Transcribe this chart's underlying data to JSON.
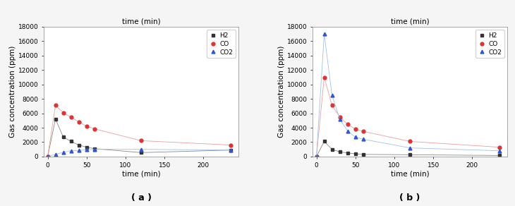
{
  "panel_a": {
    "title": "time (min)",
    "xlabel": "time (min)",
    "ylabel": "Gas concentration (ppm)",
    "label": "( a )",
    "ylim": [
      0,
      18000
    ],
    "xlim": [
      -5,
      245
    ],
    "xticks": [
      0,
      50,
      100,
      150,
      200
    ],
    "yticks": [
      0,
      2000,
      4000,
      6000,
      8000,
      10000,
      12000,
      14000,
      16000,
      18000
    ],
    "H2": {
      "x": [
        0,
        10,
        20,
        30,
        40,
        50,
        60,
        120,
        235
      ],
      "y": [
        0,
        5200,
        2700,
        2100,
        1600,
        1300,
        1100,
        550,
        900
      ],
      "color": "#888888",
      "marker": "s",
      "markercolor": "#333333",
      "label": "H2"
    },
    "CO": {
      "x": [
        0,
        10,
        20,
        30,
        40,
        50,
        60,
        120,
        235
      ],
      "y": [
        0,
        7100,
        6100,
        5450,
        4800,
        4200,
        3850,
        2200,
        1600
      ],
      "color": "#e8a0a0",
      "marker": "o",
      "markercolor": "#dd3333",
      "label": "CO"
    },
    "CO2": {
      "x": [
        0,
        10,
        20,
        30,
        40,
        50,
        60,
        120,
        235
      ],
      "y": [
        0,
        300,
        600,
        800,
        850,
        950,
        1000,
        1000,
        900
      ],
      "color": "#a0c0e8",
      "marker": "^",
      "markercolor": "#3355cc",
      "label": "CO2"
    }
  },
  "panel_b": {
    "title": "time (min)",
    "xlabel": "time (min)",
    "ylabel": "Gas concentration (ppm)",
    "label": "( b )",
    "ylim": [
      0,
      18000
    ],
    "xlim": [
      -5,
      245
    ],
    "xticks": [
      0,
      50,
      100,
      150,
      200
    ],
    "yticks": [
      0,
      2000,
      4000,
      6000,
      8000,
      10000,
      12000,
      14000,
      16000,
      18000
    ],
    "H2": {
      "x": [
        0,
        10,
        20,
        30,
        40,
        50,
        60,
        120,
        235
      ],
      "y": [
        0,
        2100,
        1000,
        650,
        500,
        380,
        300,
        250,
        150
      ],
      "color": "#888888",
      "marker": "s",
      "markercolor": "#333333",
      "label": "H2"
    },
    "CO": {
      "x": [
        0,
        10,
        20,
        30,
        40,
        50,
        60,
        120,
        235
      ],
      "y": [
        0,
        11000,
        7100,
        5500,
        4500,
        3800,
        3500,
        2100,
        1300
      ],
      "color": "#e8a0a0",
      "marker": "o",
      "markercolor": "#dd3333",
      "label": "CO"
    },
    "CO2": {
      "x": [
        0,
        10,
        20,
        30,
        40,
        50,
        60,
        120,
        235
      ],
      "y": [
        0,
        17000,
        8500,
        5200,
        3550,
        2700,
        2400,
        1200,
        800
      ],
      "color": "#a0c0e8",
      "marker": "^",
      "markercolor": "#3355cc",
      "label": "CO2"
    }
  },
  "fig_background": "#f5f5f5",
  "axes_background": "#ffffff",
  "tick_label_fontsize": 6.5,
  "axis_label_fontsize": 7.5,
  "title_fontsize": 7.5,
  "legend_fontsize": 6.5,
  "panel_label_fontsize": 9,
  "linewidth": 0.6,
  "markersize": 3.5
}
